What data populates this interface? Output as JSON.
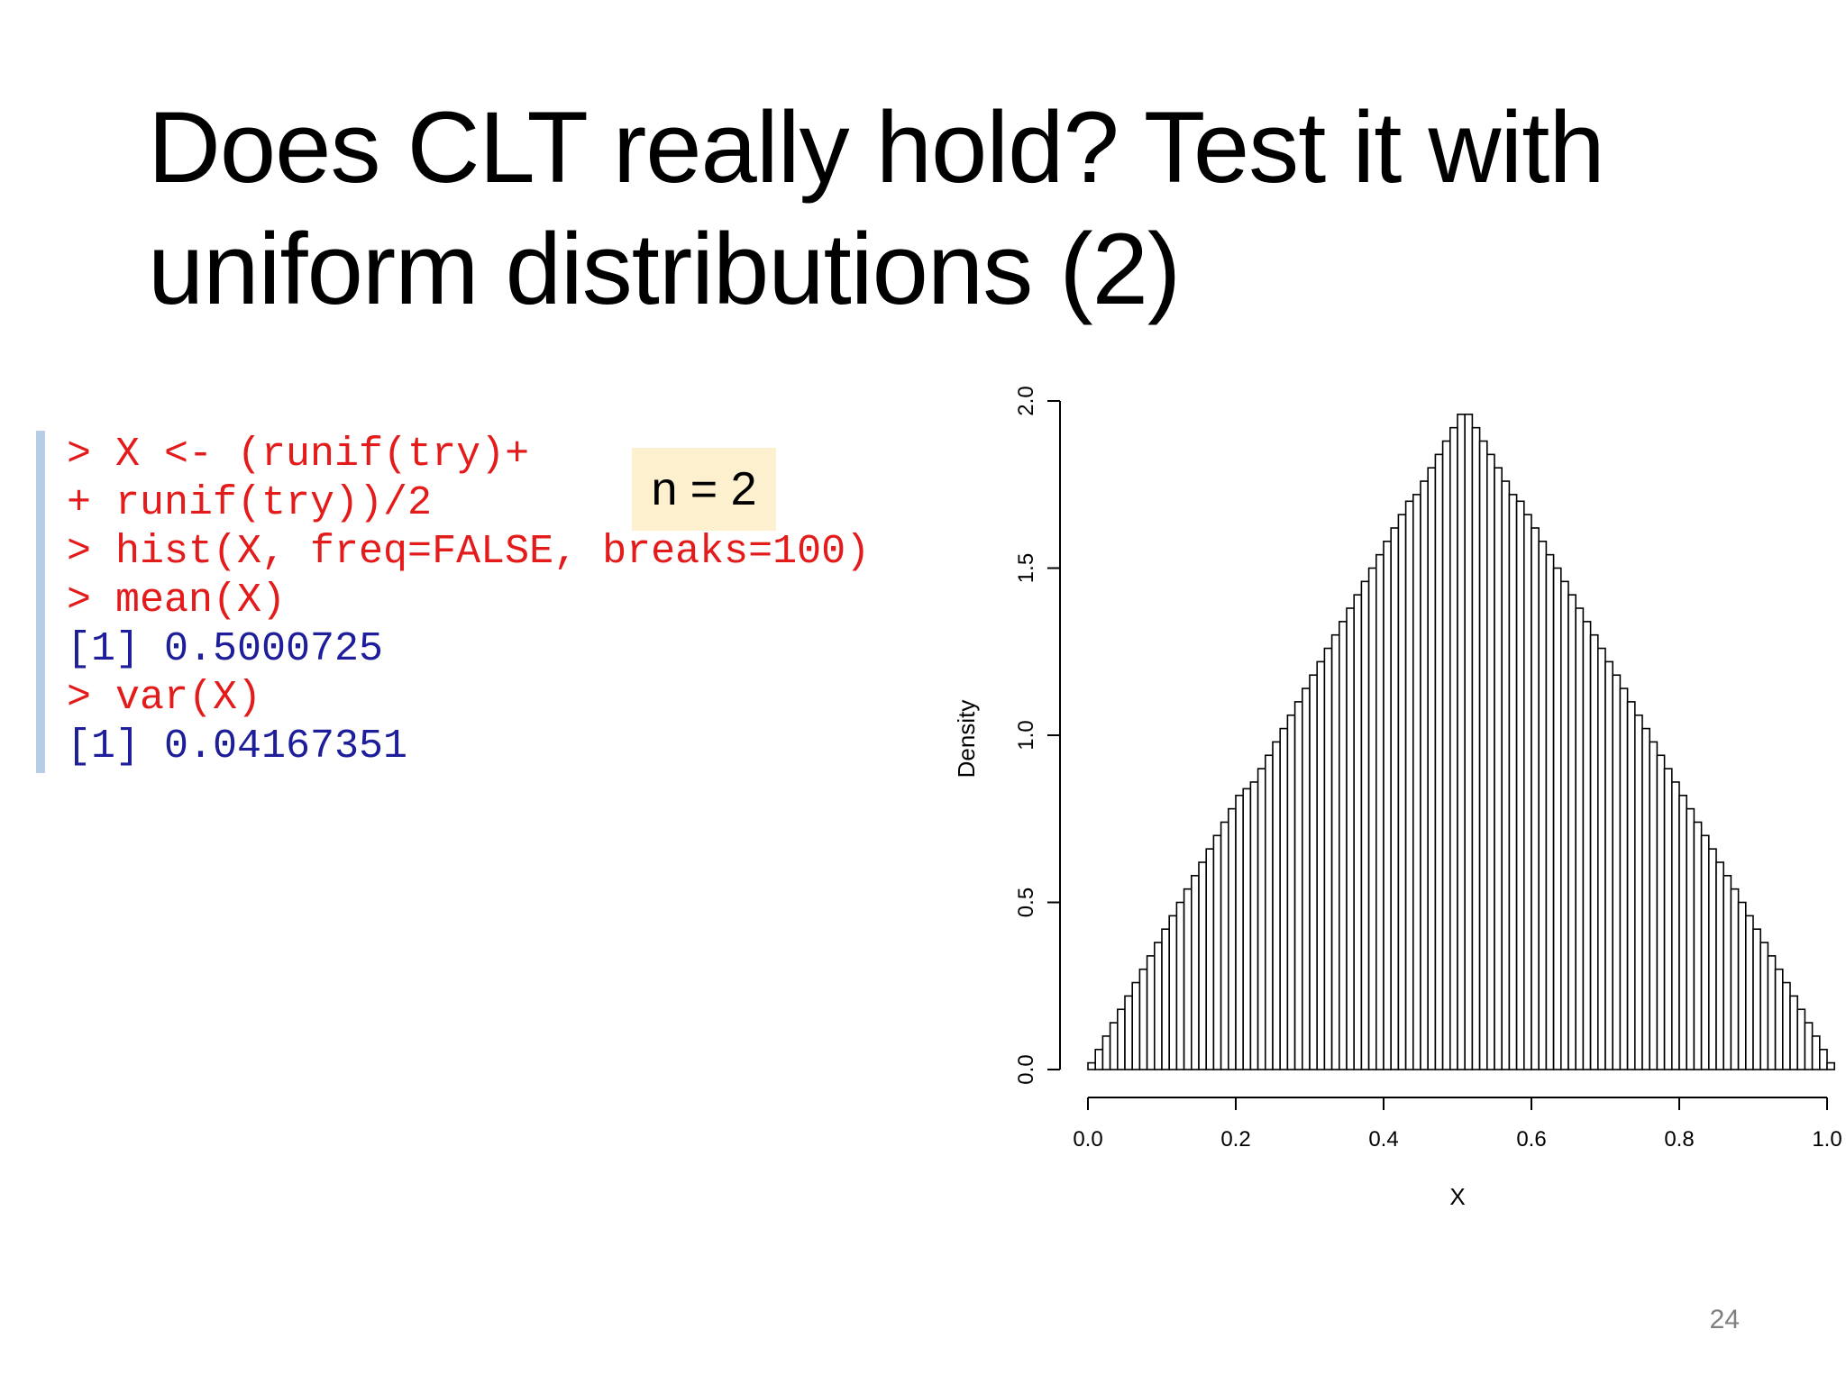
{
  "slide": {
    "title": "Does CLT really hold? Test it with uniform distributions (2)",
    "page_number": "24"
  },
  "console": {
    "lines": [
      {
        "text": "> X <- (runif(try)+",
        "kind": "command"
      },
      {
        "text": "+ runif(try))/2",
        "kind": "command"
      },
      {
        "text": "> hist(X, freq=FALSE, breaks=100)",
        "kind": "command"
      },
      {
        "text": "> mean(X)",
        "kind": "command"
      },
      {
        "text": "[1] 0.5000725",
        "kind": "output"
      },
      {
        "text": "> var(X)",
        "kind": "command"
      },
      {
        "text": "[1] 0.04167351",
        "kind": "output"
      }
    ],
    "command_color": "#e41b1b",
    "output_color": "#1e1e9a"
  },
  "callout": {
    "text": "n = 2",
    "color": "#fdf0cf"
  },
  "chart_data": {
    "type": "bar",
    "xlabel": "X",
    "ylabel": "Density",
    "xlim": [
      0,
      1
    ],
    "ylim": [
      0,
      2
    ],
    "x_ticks": [
      "0.0",
      "0.2",
      "0.4",
      "0.6",
      "0.8",
      "1.0"
    ],
    "y_ticks": [
      "0.0",
      "0.5",
      "1.0",
      "1.5",
      "2.0"
    ],
    "bin_width": 0.01,
    "bin_start": 0.0,
    "values": [
      0.02,
      0.06,
      0.1,
      0.14,
      0.18,
      0.22,
      0.26,
      0.3,
      0.34,
      0.38,
      0.42,
      0.46,
      0.5,
      0.54,
      0.58,
      0.62,
      0.66,
      0.7,
      0.74,
      0.78,
      0.82,
      0.84,
      0.86,
      0.9,
      0.94,
      0.98,
      1.02,
      1.06,
      1.1,
      1.14,
      1.18,
      1.22,
      1.26,
      1.3,
      1.34,
      1.38,
      1.42,
      1.46,
      1.5,
      1.54,
      1.58,
      1.62,
      1.66,
      1.7,
      1.72,
      1.76,
      1.8,
      1.84,
      1.88,
      1.92,
      1.96,
      1.96,
      1.92,
      1.88,
      1.84,
      1.8,
      1.76,
      1.72,
      1.7,
      1.66,
      1.62,
      1.58,
      1.54,
      1.5,
      1.46,
      1.42,
      1.38,
      1.34,
      1.3,
      1.26,
      1.22,
      1.18,
      1.14,
      1.1,
      1.06,
      1.02,
      0.98,
      0.94,
      0.9,
      0.86,
      0.82,
      0.78,
      0.74,
      0.7,
      0.66,
      0.62,
      0.58,
      0.54,
      0.5,
      0.46,
      0.42,
      0.38,
      0.34,
      0.3,
      0.26,
      0.22,
      0.18,
      0.14,
      0.1,
      0.06,
      0.02
    ],
    "bar_fill": "#ffffff",
    "bar_stroke": "#000000"
  }
}
